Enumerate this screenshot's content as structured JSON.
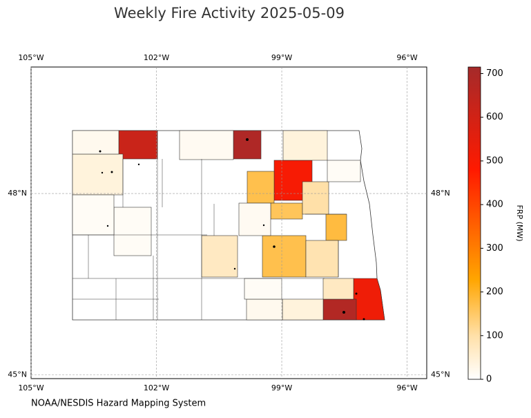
{
  "title": "Weekly Fire Activity 2025-05-09",
  "source": "NOAA/NESDIS Hazard Mapping System",
  "map": {
    "xlim": [
      -105,
      -95.53
    ],
    "ylim": [
      44.94,
      50.09
    ],
    "xticks": [
      {
        "value": -105,
        "label": "105°W"
      },
      {
        "value": -102,
        "label": "102°W"
      },
      {
        "value": -99,
        "label": "99°W"
      },
      {
        "value": -96,
        "label": "96°W"
      }
    ],
    "yticks": [
      {
        "value": 45,
        "label": "45°N"
      },
      {
        "value": 48,
        "label": "48°N"
      }
    ],
    "grid": true
  },
  "colorbar": {
    "label": "FRP (MW)",
    "clim": [
      0,
      715
    ],
    "ticks": [
      0,
      100,
      200,
      300,
      400,
      500,
      600,
      700
    ]
  },
  "county_frp": [
    620,
    690,
    500,
    520,
    680,
    170,
    160,
    170,
    180,
    100,
    90,
    70,
    40,
    40,
    70,
    40,
    20,
    20,
    15,
    10,
    10,
    10,
    15,
    10
  ]
}
